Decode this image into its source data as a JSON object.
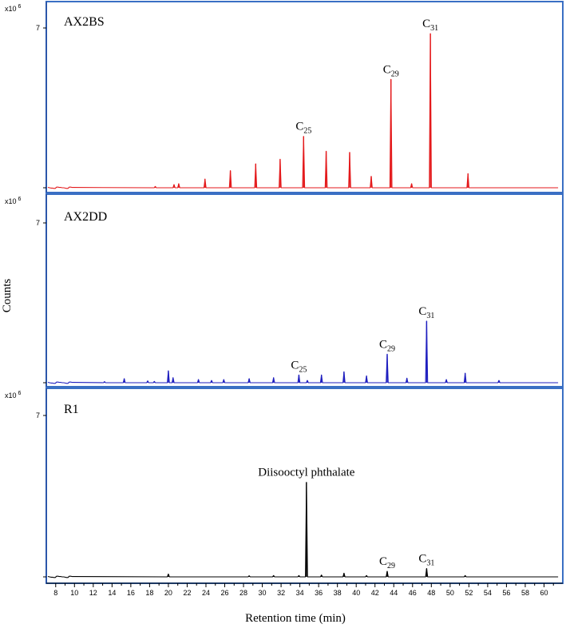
{
  "figure": {
    "ylabel": "Counts",
    "xlabel": "Retention time (min)"
  },
  "chart_data": [
    {
      "type": "line",
      "title": "AX2BS",
      "color": "#e41a1c",
      "scale_label": "x10 6",
      "ytick": "7",
      "xlim": [
        7,
        62
      ],
      "ylim": [
        0,
        7.4
      ],
      "peaks": [
        {
          "x": 18.6,
          "y": 0.06
        },
        {
          "x": 20.6,
          "y": 0.14
        },
        {
          "x": 21.1,
          "y": 0.18
        },
        {
          "x": 23.9,
          "y": 0.38
        },
        {
          "x": 26.6,
          "y": 0.75
        },
        {
          "x": 29.3,
          "y": 1.05
        },
        {
          "x": 31.9,
          "y": 1.25
        },
        {
          "x": 34.4,
          "y": 2.25
        },
        {
          "x": 36.8,
          "y": 1.6
        },
        {
          "x": 39.3,
          "y": 1.55
        },
        {
          "x": 41.6,
          "y": 0.5
        },
        {
          "x": 43.7,
          "y": 4.75
        },
        {
          "x": 45.9,
          "y": 0.18
        },
        {
          "x": 47.9,
          "y": 6.75
        },
        {
          "x": 51.9,
          "y": 0.62
        }
      ],
      "annotations": [
        {
          "text": "C",
          "sub": "25",
          "x": 34.4,
          "y": 2.25
        },
        {
          "text": "C",
          "sub": "29",
          "x": 43.7,
          "y": 4.75
        },
        {
          "text": "C",
          "sub": "31",
          "x": 47.9,
          "y": 6.75
        }
      ]
    },
    {
      "type": "line",
      "title": "AX2DD",
      "color": "#1f1fbf",
      "scale_label": "x10 6",
      "ytick": "7",
      "xlim": [
        7,
        62
      ],
      "ylim": [
        0,
        7.4
      ],
      "peaks": [
        {
          "x": 13.2,
          "y": 0.05
        },
        {
          "x": 15.3,
          "y": 0.18
        },
        {
          "x": 17.8,
          "y": 0.08
        },
        {
          "x": 18.5,
          "y": 0.06
        },
        {
          "x": 20.0,
          "y": 0.52
        },
        {
          "x": 20.5,
          "y": 0.22
        },
        {
          "x": 23.2,
          "y": 0.14
        },
        {
          "x": 24.6,
          "y": 0.1
        },
        {
          "x": 25.9,
          "y": 0.14
        },
        {
          "x": 28.6,
          "y": 0.18
        },
        {
          "x": 31.2,
          "y": 0.22
        },
        {
          "x": 33.9,
          "y": 0.34
        },
        {
          "x": 34.8,
          "y": 0.1
        },
        {
          "x": 36.3,
          "y": 0.34
        },
        {
          "x": 38.7,
          "y": 0.48
        },
        {
          "x": 41.1,
          "y": 0.3
        },
        {
          "x": 43.3,
          "y": 1.25
        },
        {
          "x": 45.4,
          "y": 0.2
        },
        {
          "x": 47.5,
          "y": 2.7
        },
        {
          "x": 49.6,
          "y": 0.14
        },
        {
          "x": 51.6,
          "y": 0.42
        },
        {
          "x": 55.2,
          "y": 0.1
        }
      ],
      "annotations": [
        {
          "text": "C",
          "sub": "25",
          "x": 33.9,
          "y": 0.34
        },
        {
          "text": "C",
          "sub": "29",
          "x": 43.3,
          "y": 1.25
        },
        {
          "text": "C",
          "sub": "31",
          "x": 47.5,
          "y": 2.7
        }
      ]
    },
    {
      "type": "line",
      "title": "R1",
      "color": "#000000",
      "scale_label": "x10 6",
      "ytick": "7",
      "xlim": [
        7,
        62
      ],
      "ylim": [
        0,
        7.4
      ],
      "peaks": [
        {
          "x": 20.0,
          "y": 0.12
        },
        {
          "x": 28.6,
          "y": 0.05
        },
        {
          "x": 31.2,
          "y": 0.06
        },
        {
          "x": 33.9,
          "y": 0.06
        },
        {
          "x": 34.7,
          "y": 4.1
        },
        {
          "x": 36.3,
          "y": 0.08
        },
        {
          "x": 38.7,
          "y": 0.16
        },
        {
          "x": 41.1,
          "y": 0.06
        },
        {
          "x": 43.3,
          "y": 0.24
        },
        {
          "x": 47.5,
          "y": 0.36
        },
        {
          "x": 51.6,
          "y": 0.06
        }
      ],
      "annotations": [
        {
          "text": "Diisooctyl phthalate",
          "sub": "",
          "x": 34.7,
          "y": 4.1
        },
        {
          "text": "C",
          "sub": "29",
          "x": 43.3,
          "y": 0.24
        },
        {
          "text": "C",
          "sub": "31",
          "x": 47.5,
          "y": 0.36
        }
      ]
    }
  ],
  "x_ticks": [
    "8",
    "10",
    "12",
    "14",
    "16",
    "18",
    "20",
    "22",
    "24",
    "26",
    "28",
    "30",
    "32",
    "34",
    "36",
    "38",
    "40",
    "42",
    "44",
    "46",
    "48",
    "50",
    "52",
    "54",
    "56",
    "58",
    "60"
  ]
}
